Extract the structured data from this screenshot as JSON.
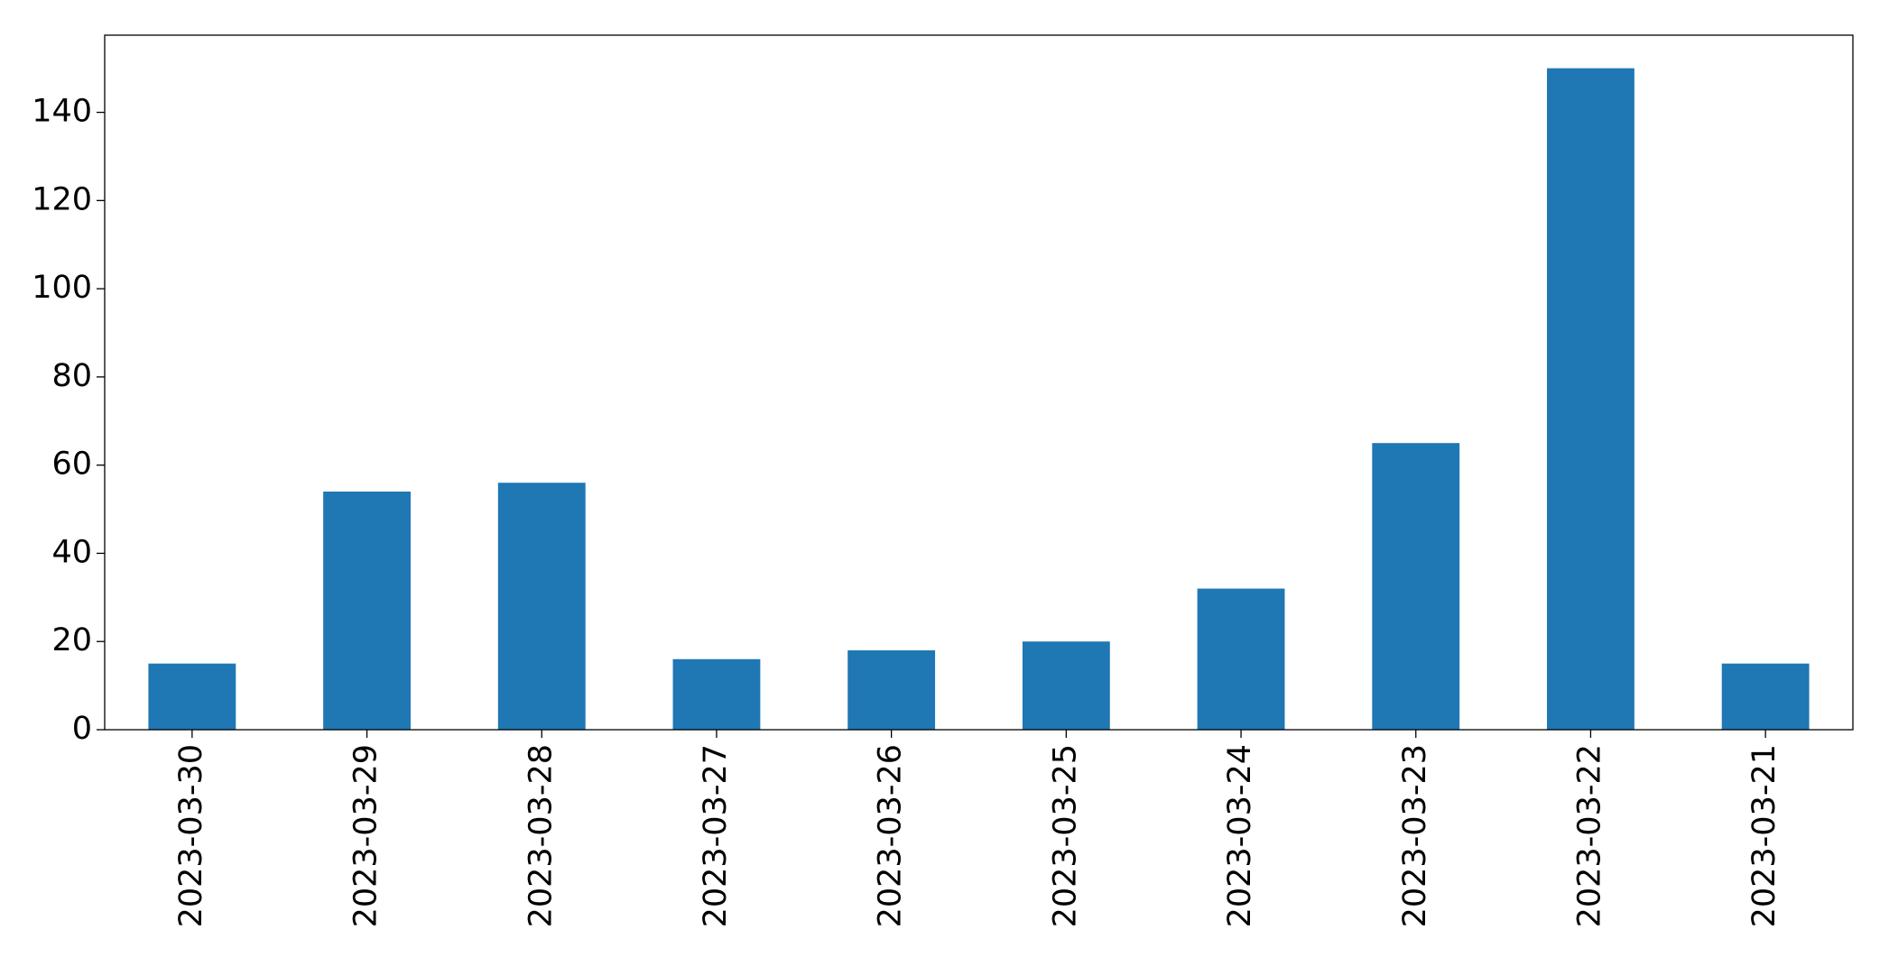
{
  "chart_data": {
    "type": "bar",
    "categories": [
      "2023-03-30",
      "2023-03-29",
      "2023-03-28",
      "2023-03-27",
      "2023-03-26",
      "2023-03-25",
      "2023-03-24",
      "2023-03-23",
      "2023-03-22",
      "2023-03-21"
    ],
    "values": [
      15,
      54,
      56,
      16,
      18,
      20,
      32,
      65,
      150,
      15
    ],
    "color": "#1f77b4",
    "ylim": [
      0,
      157.5
    ],
    "yticks": [
      0,
      20,
      40,
      60,
      80,
      100,
      120,
      140
    ],
    "grid": false
  }
}
